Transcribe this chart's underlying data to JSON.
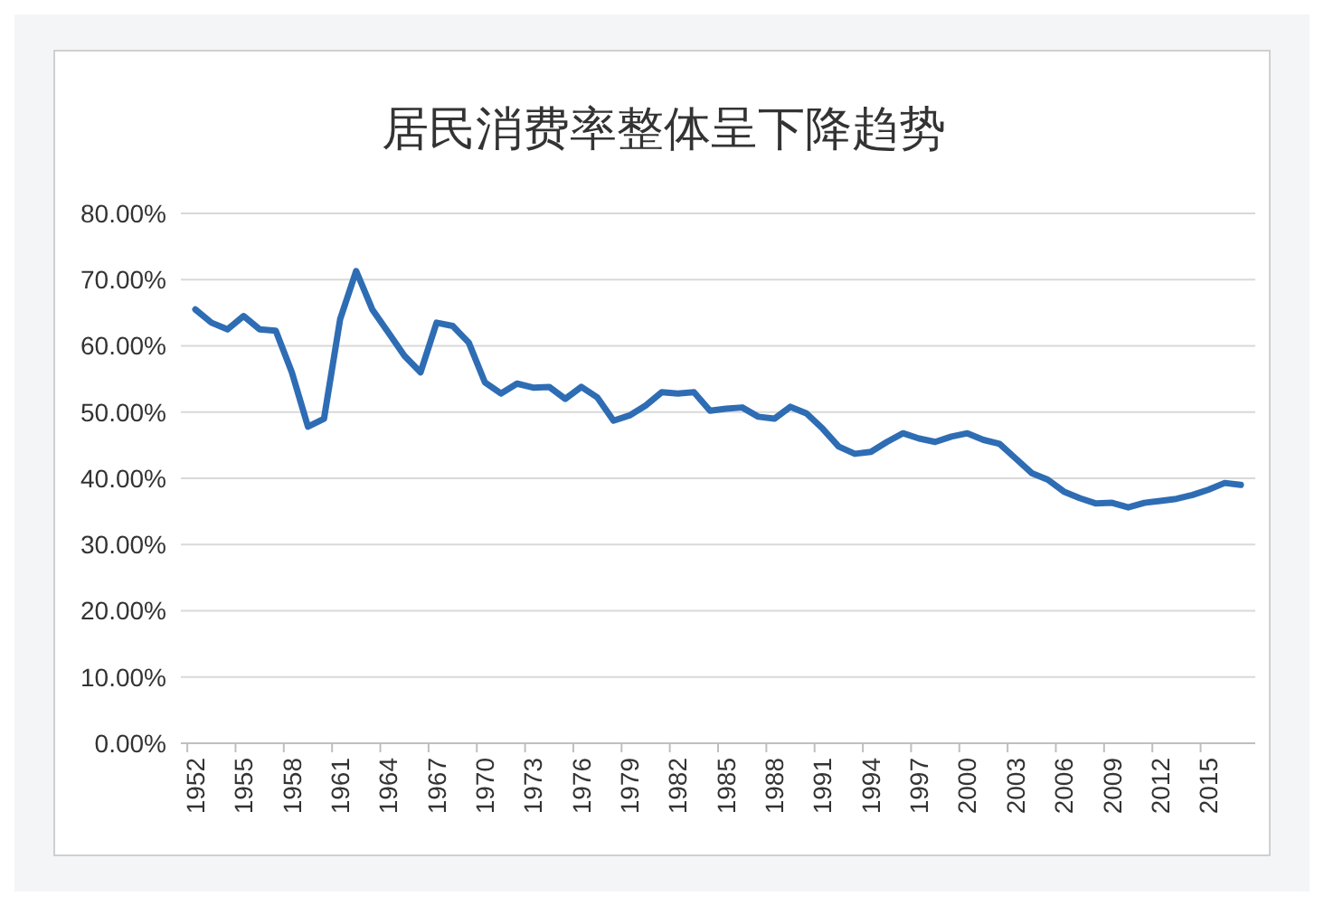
{
  "chart_data": {
    "type": "line",
    "title": "居民消费率整体呈下降趋势",
    "categories": [
      "1952",
      null,
      null,
      "1955",
      null,
      null,
      "1958",
      null,
      null,
      "1961",
      null,
      null,
      "1964",
      null,
      null,
      "1967",
      null,
      null,
      "1970",
      null,
      null,
      "1973",
      null,
      null,
      "1976",
      null,
      null,
      "1979",
      null,
      null,
      "1982",
      null,
      null,
      "1985",
      null,
      null,
      "1988",
      null,
      null,
      "1991",
      null,
      null,
      "1994",
      null,
      null,
      "1997",
      null,
      null,
      "2000",
      null,
      null,
      "2003",
      null,
      null,
      "2006",
      null,
      null,
      "2009",
      null,
      null,
      "2012",
      null,
      null,
      "2015",
      null,
      null
    ],
    "series": [
      {
        "color": "#2e6db4",
        "values": [
          65.5,
          63.5,
          62.5,
          64.5,
          62.5,
          62.3,
          56,
          47.8,
          49,
          64,
          71.3,
          65.5,
          62,
          58.5,
          56,
          63.5,
          63,
          60.5,
          54.5,
          52.8,
          54.3,
          53.7,
          53.8,
          52,
          53.8,
          52.2,
          48.7,
          49.5,
          51,
          53,
          52.8,
          53,
          50.2,
          50.5,
          50.7,
          49.3,
          49,
          50.8,
          49.8,
          47.5,
          44.8,
          43.7,
          44,
          45.5,
          46.8,
          46,
          45.5,
          46.3,
          46.8,
          45.8,
          45.2,
          43,
          40.8,
          39.8,
          38,
          37,
          36.2,
          36.3,
          35.6,
          36.3,
          36.6,
          36.9,
          37.5,
          38.3,
          39.3,
          39
        ]
      }
    ],
    "ylim": [
      0,
      80
    ],
    "yticks": [
      {
        "value": 0,
        "label": "0.00%"
      },
      {
        "value": 10,
        "label": "10.00%"
      },
      {
        "value": 20,
        "label": "20.00%"
      },
      {
        "value": 30,
        "label": "30.00%"
      },
      {
        "value": 40,
        "label": "40.00%"
      },
      {
        "value": 50,
        "label": "50.00%"
      },
      {
        "value": 60,
        "label": "60.00%"
      },
      {
        "value": 70,
        "label": "70.00%"
      },
      {
        "value": 80,
        "label": "80.00%"
      }
    ],
    "grid": "y",
    "line_style": "solid",
    "marker": "none"
  }
}
